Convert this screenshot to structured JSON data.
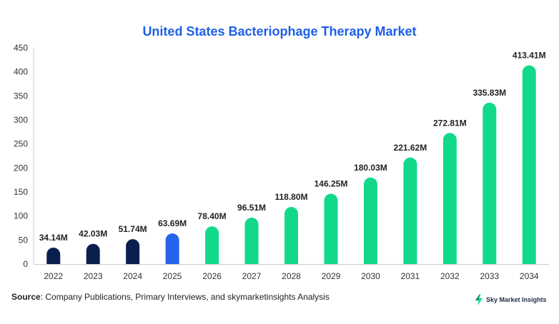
{
  "chart_data": {
    "type": "bar",
    "title": "United States Bacteriophage Therapy Market",
    "categories": [
      "2022",
      "2023",
      "2024",
      "2025",
      "2026",
      "2027",
      "2028",
      "2029",
      "2030",
      "2031",
      "2032",
      "2033",
      "2034"
    ],
    "values": [
      34.14,
      42.03,
      51.74,
      63.69,
      78.4,
      96.51,
      118.8,
      146.25,
      180.03,
      221.62,
      272.81,
      335.83,
      413.41
    ],
    "data_labels": [
      "34.14M",
      "42.03M",
      "51.74M",
      "63.69M",
      "78.40M",
      "96.51M",
      "118.80M",
      "146.25M",
      "180.03M",
      "221.62M",
      "272.81M",
      "335.83M",
      "413.41M"
    ],
    "ylim": [
      0,
      450
    ],
    "yticks": [
      0,
      50,
      100,
      150,
      200,
      250,
      300,
      350,
      400,
      450
    ],
    "xlabel": "",
    "ylabel": "",
    "grid": false,
    "bar_colors": [
      "#0b1f4f",
      "#0b1f4f",
      "#0b1f4f",
      "#2563eb",
      "#12d98a",
      "#12d98a",
      "#12d98a",
      "#12d98a",
      "#12d98a",
      "#12d98a",
      "#12d98a",
      "#12d98a",
      "#12d98a"
    ]
  },
  "colors": {
    "title": "#1d5fe6",
    "axis": "#cccccc",
    "label": "#222222",
    "tick": "#333333"
  },
  "source": {
    "prefix": "Source",
    "text": ": Company Publications, Primary Interviews, and skymarketinsights Analysis"
  },
  "brand": {
    "name": "Sky Market Insights",
    "logo_icon": "lightning-bolt-icon"
  }
}
